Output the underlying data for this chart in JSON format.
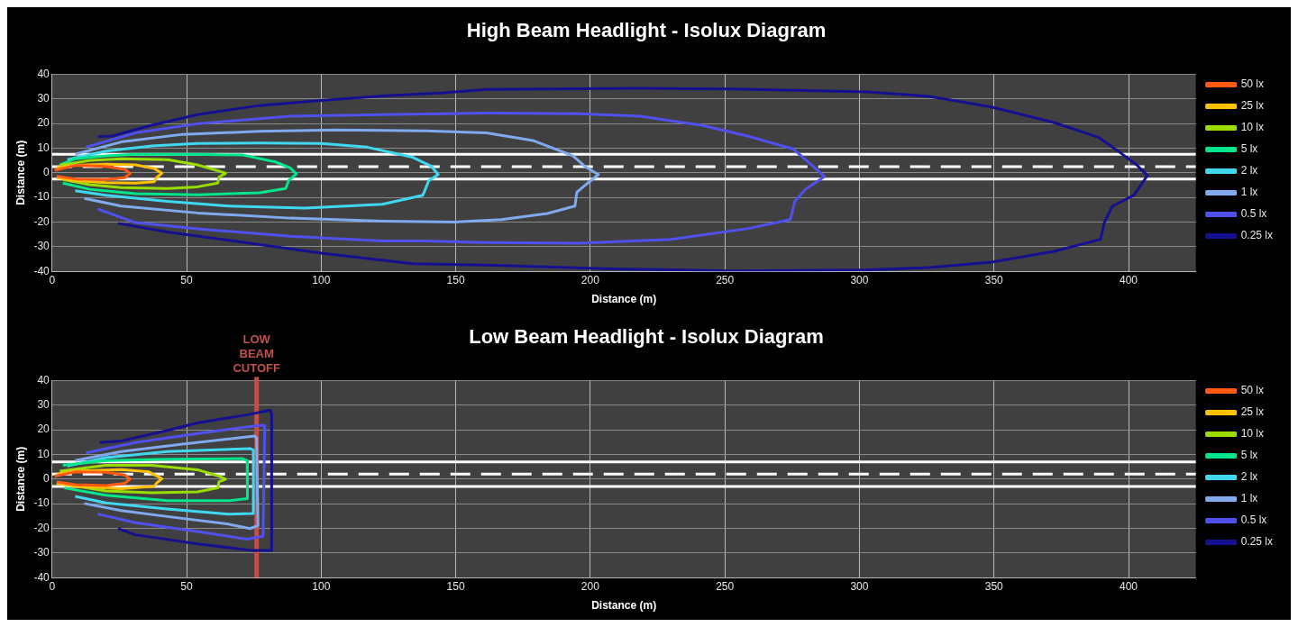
{
  "chart_data": [
    {
      "type": "line",
      "title": "High Beam Headlight - Isolux Diagram",
      "xlabel": "Distance (m)",
      "ylabel": "Distance (m)",
      "xlim": [
        0,
        425
      ],
      "xticks": [
        0,
        50,
        100,
        150,
        200,
        250,
        300,
        350,
        400
      ],
      "ylim": [
        -40,
        40
      ],
      "yticks": [
        -40,
        -30,
        -20,
        -10,
        0,
        10,
        20,
        30,
        40
      ],
      "grid": true,
      "legend": "right",
      "marker": "none",
      "ref_lines": [
        {
          "axis": "y",
          "value": 7.5,
          "color": "#ffffff",
          "line_style": "solid"
        },
        {
          "axis": "y",
          "value": 2.5,
          "color": "#ffffff",
          "line_style": "dashed"
        },
        {
          "axis": "y",
          "value": -2.5,
          "color": "#ffffff",
          "line_style": "solid"
        }
      ],
      "series": [
        {
          "name": "50 lx",
          "color": "#ff5a10",
          "x": [
            1,
            8.6,
            20,
            27,
            29,
            27,
            20,
            8.6,
            1.7
          ],
          "values": [
            1,
            3,
            2.6,
            1.4,
            -0.3,
            -2,
            -2.7,
            -2.5,
            -1.4
          ]
        },
        {
          "name": "25 lx",
          "color": "#ffc000",
          "x": [
            1.7,
            8.6,
            20,
            31,
            38,
            40.8,
            38.8,
            38,
            31,
            20,
            8.6,
            1.7
          ],
          "values": [
            2,
            3,
            3.5,
            3.2,
            1.7,
            -0.2,
            -2,
            -3.6,
            -4.2,
            -4,
            -3.2,
            -2
          ]
        },
        {
          "name": "10 lx",
          "color": "#99dd00",
          "x": [
            2.9,
            14,
            25.7,
            43,
            54,
            62,
            64.5,
            62,
            61.6,
            54,
            43,
            25.7,
            14,
            4
          ],
          "values": [
            3,
            5,
            5.7,
            5.3,
            3.2,
            0.7,
            -0.2,
            -1.7,
            -4.2,
            -5.7,
            -6.4,
            -6,
            -4.8,
            -2.7
          ]
        },
        {
          "name": "5 lx",
          "color": "#00e68a",
          "x": [
            2.9,
            8.6,
            20,
            31,
            54,
            71,
            83,
            88.5,
            90.8,
            88,
            86.8,
            77,
            54,
            31,
            14,
            4
          ],
          "values": [
            3.2,
            5.7,
            6.9,
            7.5,
            7.5,
            7.2,
            4.4,
            2,
            -0.5,
            -3,
            -6.4,
            -8.1,
            -8.9,
            -8.5,
            -6.7,
            -4.2
          ]
        },
        {
          "name": "2 lx",
          "color": "#40d8f0",
          "x": [
            5.7,
            20,
            37,
            54,
            77,
            100,
            117,
            134,
            141,
            143.5,
            140,
            137.8,
            122.7,
            94,
            65.6,
            42.8,
            20,
            8.6
          ],
          "values": [
            5.3,
            8.8,
            10.9,
            11.9,
            12.1,
            11.9,
            10.4,
            6.3,
            2.6,
            -0.7,
            -3.2,
            -9.1,
            -12.8,
            -14.3,
            -13.5,
            -11.6,
            -9.1,
            -7.3
          ]
        },
        {
          "name": "1 lx",
          "color": "#80aaf0",
          "x": [
            8.6,
            25.7,
            48.5,
            77,
            105.6,
            138.7,
            161.5,
            178.6,
            193.5,
            198,
            203,
            198.4,
            195,
            194.3,
            184,
            167,
            150,
            122.7,
            88.5,
            54,
            25.7,
            12
          ],
          "values": [
            7.5,
            12.5,
            15.6,
            16.8,
            17.4,
            17,
            16.2,
            13.1,
            6.9,
            2.6,
            -0.7,
            -4.8,
            -7.9,
            -13.5,
            -16.5,
            -19,
            -20,
            -19.6,
            -18.4,
            -16.3,
            -13.5,
            -10.4
          ]
        },
        {
          "name": "0.5 lx",
          "color": "#5050ee",
          "x": [
            12.6,
            31,
            54,
            88.5,
            122.7,
            161.5,
            195.7,
            218.5,
            241.3,
            258.4,
            275.5,
            281,
            287,
            280,
            276,
            274.3,
            258.4,
            229.9,
            195.7,
            161.5,
            138.7,
            122.7,
            88.5,
            54,
            31,
            17
          ],
          "values": [
            10.4,
            16.2,
            19.9,
            23,
            23.6,
            24.2,
            24,
            23,
            19.3,
            14.9,
            9.6,
            4.4,
            -1.5,
            -6.7,
            -11.6,
            -19,
            -22.7,
            -27,
            -28.6,
            -28.3,
            -27.7,
            -27.7,
            -25.8,
            -22.7,
            -20.2,
            -14.7
          ]
        },
        {
          "name": "0.25 lx",
          "color": "#151090",
          "x": [
            17,
            22.3,
            37,
            54,
            77,
            100,
            122.7,
            145.5,
            161.5,
            218.5,
            252.7,
            303,
            326,
            349,
            372,
            389,
            397,
            403,
            407,
            402,
            394,
            391,
            389.6,
            372,
            349,
            326,
            303,
            252.7,
            208.5,
            161.5,
            134,
            100,
            65.6,
            42.8,
            24.5
          ],
          "values": [
            14.6,
            14.9,
            19.3,
            23.6,
            27.3,
            29.4,
            31.2,
            32.5,
            33.8,
            34.3,
            34,
            32.8,
            31,
            26.7,
            20.5,
            14.3,
            8.1,
            3.2,
            -1.1,
            -9.1,
            -13.5,
            -20.2,
            -27,
            -32,
            -36.3,
            -38.5,
            -39.4,
            -39.8,
            -39,
            -37.5,
            -36.9,
            -32.6,
            -27.4,
            -24,
            -20.5
          ]
        }
      ]
    },
    {
      "type": "line",
      "title": "Low Beam Headlight - Isolux Diagram",
      "xlabel": "Distance (m)",
      "ylabel": "Distance (m)",
      "xlim": [
        0,
        425
      ],
      "xticks": [
        0,
        50,
        100,
        150,
        200,
        250,
        300,
        350,
        400
      ],
      "ylim": [
        -40,
        40
      ],
      "yticks": [
        -40,
        -30,
        -20,
        -10,
        0,
        10,
        20,
        30,
        40
      ],
      "grid": true,
      "legend": "right",
      "marker": "none",
      "ref_lines": [
        {
          "axis": "y",
          "value": 7,
          "color": "#ffffff",
          "line_style": "solid"
        },
        {
          "axis": "y",
          "value": 2,
          "color": "#ffffff",
          "line_style": "dashed"
        },
        {
          "axis": "y",
          "value": -3,
          "color": "#ffffff",
          "line_style": "solid"
        },
        {
          "axis": "x",
          "value": 76,
          "label": "LOW BEAM CUTOFF",
          "color": "#c0504d",
          "line_style": "solid"
        }
      ],
      "series": [
        {
          "name": "50 lx",
          "color": "#ff5a10",
          "x": [
            1,
            8.6,
            20,
            27,
            29,
            27,
            20,
            8.6,
            1.7
          ],
          "values": [
            1.2,
            2.9,
            2.8,
            1.7,
            0,
            -1.7,
            -2.6,
            -2.3,
            -1.2
          ]
        },
        {
          "name": "25 lx",
          "color": "#ffc000",
          "x": [
            1.7,
            8.6,
            25.7,
            36,
            40.8,
            38.8,
            38,
            25.7,
            8.6,
            1.7
          ],
          "values": [
            2,
            3.2,
            3.9,
            2.9,
            0.2,
            -1.7,
            -2.9,
            -3.9,
            -2.9,
            -1.7
          ]
        },
        {
          "name": "10 lx",
          "color": "#99dd00",
          "x": [
            2.9,
            20,
            37,
            54,
            62,
            64.5,
            62,
            61.6,
            54,
            37,
            20,
            4
          ],
          "values": [
            3.2,
            5.6,
            5.6,
            3.8,
            1.2,
            0,
            -1.1,
            -3.6,
            -5.2,
            -5.6,
            -4.8,
            -2
          ]
        },
        {
          "name": "5 lx",
          "color": "#00e68a",
          "x": [
            4,
            20,
            42.8,
            70.8,
            72.5,
            72.7,
            72.5,
            65.6,
            42.8,
            20,
            4.6
          ],
          "values": [
            5.6,
            7.5,
            8.1,
            8.3,
            7.5,
            0.7,
            -7.9,
            -8.8,
            -8.8,
            -6.6,
            -3.6
          ]
        },
        {
          "name": "2 lx",
          "color": "#40d8f0",
          "x": [
            5.7,
            20,
            42.8,
            73.6,
            74.8,
            74.8,
            65.6,
            42.8,
            20,
            8.6
          ],
          "values": [
            5.3,
            8.7,
            11.2,
            12.4,
            11.8,
            -14,
            -14.2,
            -12.1,
            -9.7,
            -7
          ]
        },
        {
          "name": "1 lx",
          "color": "#80aaf0",
          "x": [
            8.6,
            25.7,
            48.5,
            75.3,
            76,
            76.5,
            73.6,
            65.6,
            42.8,
            25.7,
            12
          ],
          "values": [
            7.5,
            11.2,
            14.2,
            17.5,
            16.7,
            -18.9,
            -20.1,
            -18.3,
            -15.2,
            -12.8,
            -9.9
          ]
        },
        {
          "name": "0.5 lx",
          "color": "#5050ee",
          "x": [
            12.6,
            31,
            54,
            77,
            78.8,
            79,
            78.4,
            72.5,
            54,
            31,
            17
          ],
          "values": [
            10.6,
            14.8,
            18.5,
            21.8,
            21.8,
            19.1,
            -23.2,
            -24.4,
            -21.3,
            -17.7,
            -14.2
          ]
        },
        {
          "name": "0.25 lx",
          "color": "#151090",
          "x": [
            17.7,
            25.7,
            40.5,
            54,
            73.6,
            81,
            81.6,
            81.6,
            74.8,
            54,
            31,
            24.5
          ],
          "values": [
            14.8,
            15.5,
            19.1,
            22.8,
            26.3,
            28,
            26.5,
            -29,
            -29,
            -26.3,
            -22.6,
            -20.1
          ]
        }
      ]
    }
  ]
}
